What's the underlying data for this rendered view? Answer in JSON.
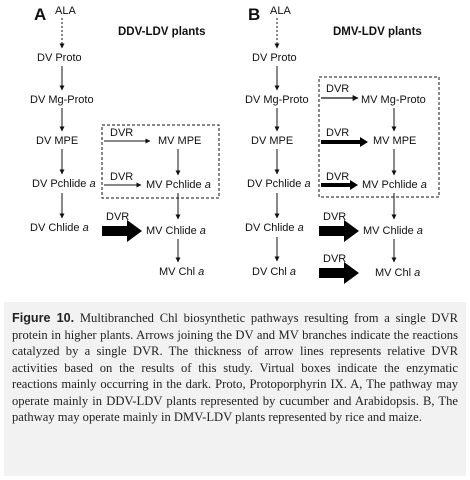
{
  "panels": {
    "a": {
      "letter": "A",
      "title": "DDV-LDV plants",
      "ala": "ALA",
      "dv_proto": "DV Proto",
      "dv_mg_proto": "DV Mg-Proto",
      "dv_mpe": "DV MPE",
      "dv_pchlide": "DV Pchlide a",
      "dv_chlide": "DV Chlide a",
      "mv_mpe": "MV MPE",
      "mv_pchlide": "MV Pchlide a",
      "mv_chlide": "MV Chlide a",
      "mv_chl": "MV Chl a",
      "dvr_labels": [
        "DVR",
        "DVR",
        "DVR"
      ]
    },
    "b": {
      "letter": "B",
      "title": "DMV-LDV plants",
      "ala": "ALA",
      "dv_proto": "DV Proto",
      "dv_mg_proto": "DV Mg-Proto",
      "dv_mpe": "DV MPE",
      "dv_pchlide": "DV Pchlide a",
      "dv_chlide": "DV Chlide a",
      "dv_chl": "DV Chl a",
      "mv_mg_proto": "MV Mg-Proto",
      "mv_mpe": "MV MPE",
      "mv_pchlide": "MV Pchlide a",
      "mv_chlide": "MV Chlide a",
      "mv_chl": "MV Chl a",
      "dvr_labels": [
        "DVR",
        "DVR",
        "DVR",
        "DVR",
        "DVR"
      ]
    }
  },
  "caption": {
    "label": "Figure 10.",
    "text": "Multibranched Chl biosynthetic pathways resulting from a single DVR protein in higher plants. Arrows joining the DV and MV branches indicate the reactions catalyzed by a single DVR. The thickness of arrow lines represents relative DVR activities based on the results of this study. Virtual boxes indicate the enzymatic reactions mainly occurring in the dark. Proto, Protoporphyrin IX. A, The pathway may operate mainly in DDV-LDV plants represented by cucumber and Arabidopsis. B, The pathway may operate mainly in DMV-LDV plants represented by rice and maize."
  }
}
